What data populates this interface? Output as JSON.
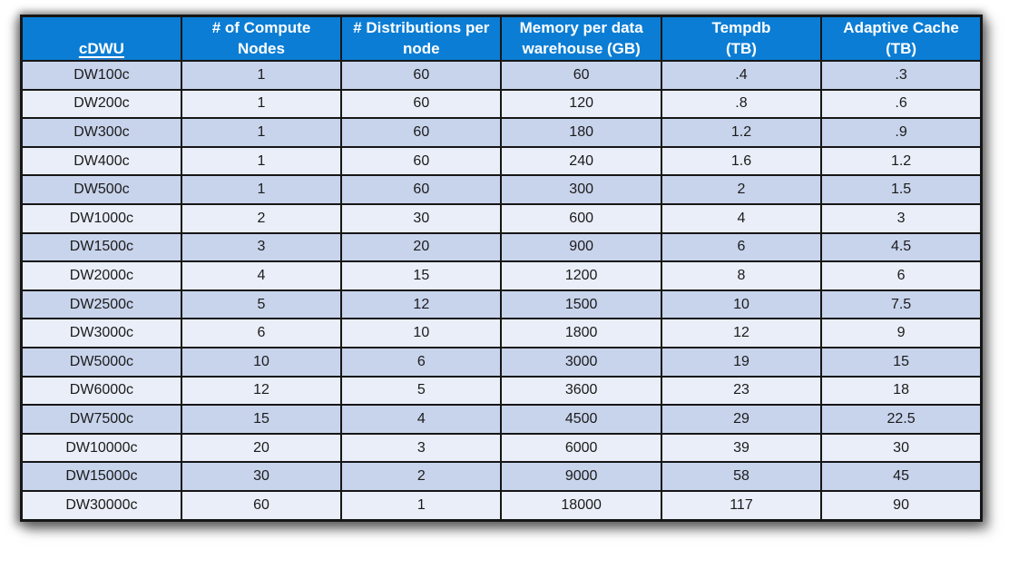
{
  "colors": {
    "header_bg": "#0b7dd4",
    "header_text": "#ffffff",
    "row_dark": "#c8d4ec",
    "row_light": "#e9eef8",
    "grid_border": "#161616",
    "cell_text": "#1b1b1b",
    "squiggle": "#d83a3a",
    "page_bg": "#ffffff"
  },
  "table": {
    "columns": [
      {
        "label": "cDWU"
      },
      {
        "label": "# of Compute\nNodes"
      },
      {
        "label": "# Distributions per\nnode"
      },
      {
        "label": "Memory per data\nwarehouse (GB)"
      },
      {
        "label": "Tempdb\n(TB)"
      },
      {
        "label": "Adaptive Cache\n(TB)"
      }
    ],
    "rows": [
      [
        "DW100c",
        "1",
        "60",
        "60",
        ".4",
        ".3"
      ],
      [
        "DW200c",
        "1",
        "60",
        "120",
        ".8",
        ".6"
      ],
      [
        "DW300c",
        "1",
        "60",
        "180",
        "1.2",
        ".9"
      ],
      [
        "DW400c",
        "1",
        "60",
        "240",
        "1.6",
        "1.2"
      ],
      [
        "DW500c",
        "1",
        "60",
        "300",
        "2",
        "1.5"
      ],
      [
        "DW1000c",
        "2",
        "30",
        "600",
        "4",
        "3"
      ],
      [
        "DW1500c",
        "3",
        "20",
        "900",
        "6",
        "4.5"
      ],
      [
        "DW2000c",
        "4",
        "15",
        "1200",
        "8",
        "6"
      ],
      [
        "DW2500c",
        "5",
        "12",
        "1500",
        "10",
        "7.5"
      ],
      [
        "DW3000c",
        "6",
        "10",
        "1800",
        "12",
        "9"
      ],
      [
        "DW5000c",
        "10",
        "6",
        "3000",
        "19",
        "15"
      ],
      [
        "DW6000c",
        "12",
        "5",
        "3600",
        "23",
        "18"
      ],
      [
        "DW7500c",
        "15",
        "4",
        "4500",
        "29",
        "22.5"
      ],
      [
        "DW10000c",
        "20",
        "3",
        "6000",
        "39",
        "30"
      ],
      [
        "DW15000c",
        "30",
        "2",
        "9000",
        "58",
        "45"
      ],
      [
        "DW30000c",
        "60",
        "1",
        "18000",
        "117",
        "90"
      ]
    ]
  }
}
